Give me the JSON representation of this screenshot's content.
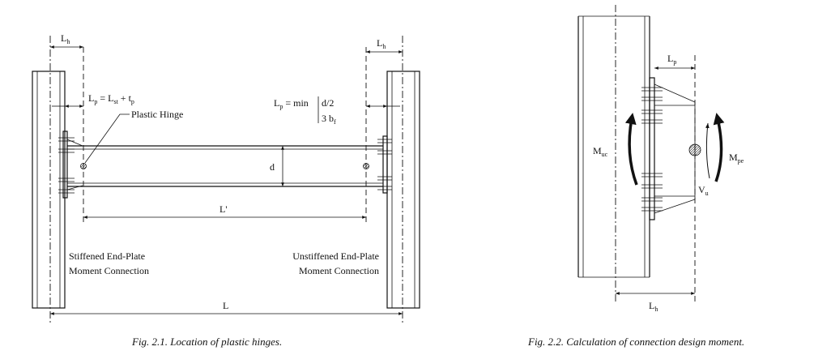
{
  "fig1": {
    "caption": "Fig. 2.1.  Location of plastic hinges.",
    "lh_left": "L",
    "lh_left_sub": "h",
    "lh_right": "L",
    "lh_right_sub": "h",
    "lp_left_main": "L",
    "lp_left_sub": "p",
    "lp_left_eq": " = L",
    "lp_left_st": "st",
    "lp_left_plus": " + t",
    "lp_left_tp": "p",
    "plastic_hinge": "Plastic Hinge",
    "lp_right_main": "L",
    "lp_right_sub": "p",
    "lp_right_eq": " = min",
    "lp_right_opt1": "d/2",
    "lp_right_opt2a": "3 b",
    "lp_right_opt2b": "f",
    "d_label": "d",
    "lprime": "L'",
    "stiffened_line1": "Stiffened End-Plate",
    "stiffened_line2": "Moment Connection",
    "unstiffened_line1": "Unstiffened End-Plate",
    "unstiffened_line2": "Moment Connection",
    "l_label": "L"
  },
  "fig2": {
    "caption": "Fig. 2.2.  Calculation of connection design moment.",
    "lp_main": "L",
    "lp_sub": "p",
    "muc_main": "M",
    "muc_sub": "uc",
    "mpe_main": "M",
    "mpe_sub": "pe",
    "vu_main": "V",
    "vu_sub": "u",
    "lh_main": "L",
    "lh_sub": "h"
  }
}
